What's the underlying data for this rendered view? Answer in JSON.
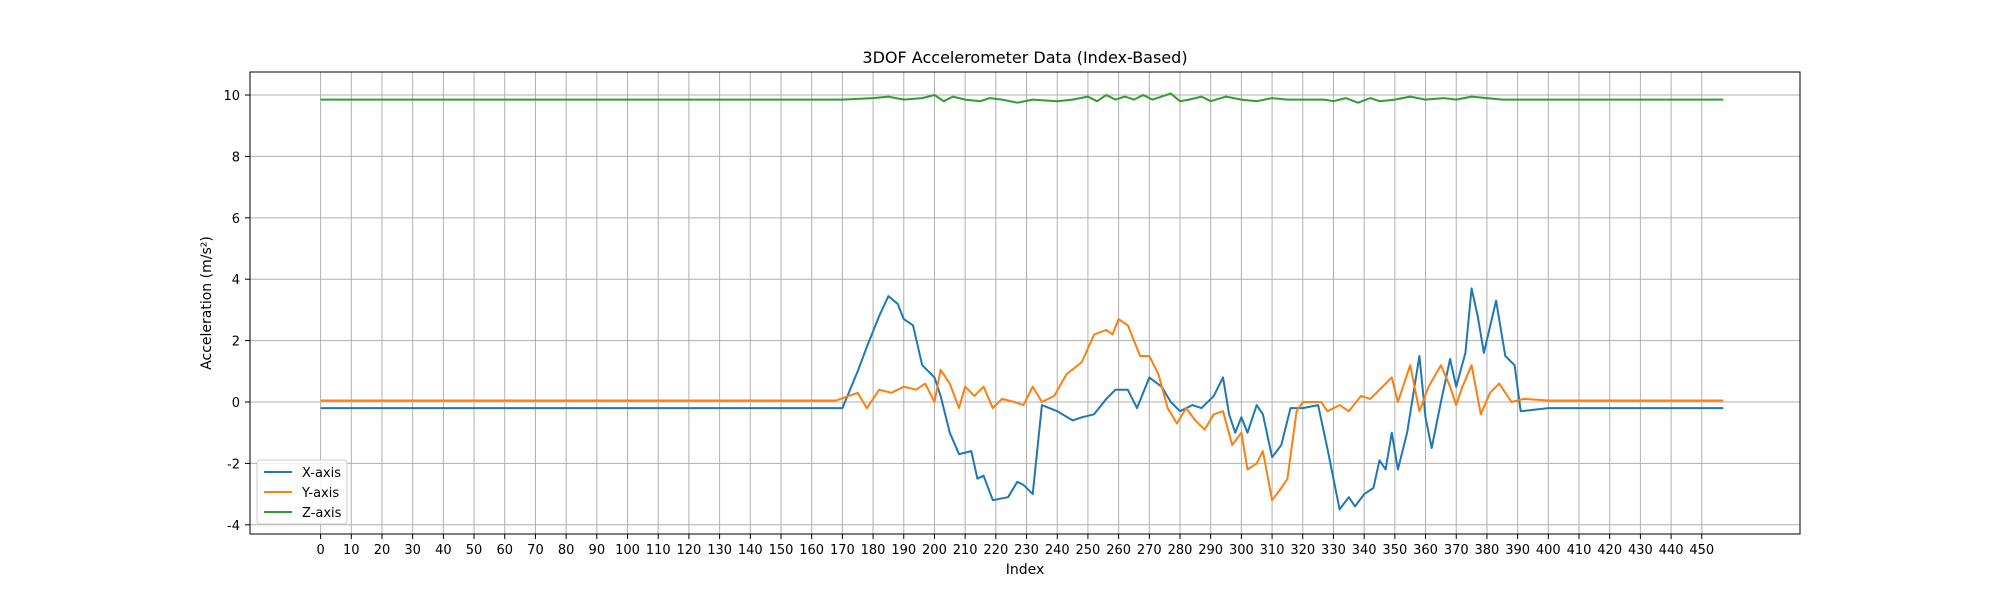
{
  "chart_data": {
    "type": "line",
    "title": "3DOF Accelerometer Data (Index-Based)",
    "xlabel": "Index",
    "ylabel": "Acceleration (m/s²)",
    "xlim": [
      -23,
      482
    ],
    "ylim": [
      -4.3,
      10.75
    ],
    "x_ticks": [
      0,
      10,
      20,
      30,
      40,
      50,
      60,
      70,
      80,
      90,
      100,
      110,
      120,
      130,
      140,
      150,
      160,
      170,
      180,
      190,
      200,
      210,
      220,
      230,
      240,
      250,
      260,
      270,
      280,
      290,
      300,
      310,
      320,
      330,
      340,
      350,
      360,
      370,
      380,
      390,
      400,
      410,
      420,
      430,
      440,
      450
    ],
    "y_ticks": [
      -4,
      -2,
      0,
      2,
      4,
      6,
      8,
      10
    ],
    "grid": true,
    "legend_position": "lower-left",
    "colors": {
      "x": "#1f77b4",
      "y": "#ff7f0e",
      "z": "#2ca02c"
    },
    "series": [
      {
        "name": "X-axis",
        "color": "#1f77b4",
        "points": [
          [
            0,
            -0.2
          ],
          [
            50,
            -0.2
          ],
          [
            100,
            -0.2
          ],
          [
            150,
            -0.2
          ],
          [
            170,
            -0.2
          ],
          [
            175,
            1.0
          ],
          [
            178,
            1.8
          ],
          [
            182,
            2.8
          ],
          [
            185,
            3.45
          ],
          [
            188,
            3.2
          ],
          [
            190,
            2.7
          ],
          [
            193,
            2.5
          ],
          [
            196,
            1.2
          ],
          [
            200,
            0.8
          ],
          [
            202,
            0.2
          ],
          [
            205,
            -1.0
          ],
          [
            208,
            -1.7
          ],
          [
            212,
            -1.6
          ],
          [
            214,
            -2.5
          ],
          [
            216,
            -2.4
          ],
          [
            219,
            -3.2
          ],
          [
            224,
            -3.1
          ],
          [
            227,
            -2.6
          ],
          [
            229,
            -2.7
          ],
          [
            232,
            -3.0
          ],
          [
            235,
            -0.1
          ],
          [
            240,
            -0.3
          ],
          [
            245,
            -0.6
          ],
          [
            248,
            -0.5
          ],
          [
            252,
            -0.4
          ],
          [
            256,
            0.1
          ],
          [
            259,
            0.4
          ],
          [
            263,
            0.4
          ],
          [
            266,
            -0.2
          ],
          [
            268,
            0.3
          ],
          [
            270,
            0.8
          ],
          [
            274,
            0.5
          ],
          [
            277,
            0.0
          ],
          [
            280,
            -0.3
          ],
          [
            284,
            -0.1
          ],
          [
            287,
            -0.2
          ],
          [
            291,
            0.2
          ],
          [
            294,
            0.8
          ],
          [
            296,
            -0.4
          ],
          [
            298,
            -1.0
          ],
          [
            300,
            -0.5
          ],
          [
            302,
            -1.0
          ],
          [
            305,
            -0.1
          ],
          [
            307,
            -0.4
          ],
          [
            310,
            -1.8
          ],
          [
            313,
            -1.4
          ],
          [
            316,
            -0.2
          ],
          [
            320,
            -0.2
          ],
          [
            325,
            -0.1
          ],
          [
            328,
            -1.5
          ],
          [
            332,
            -3.5
          ],
          [
            335,
            -3.1
          ],
          [
            337,
            -3.4
          ],
          [
            340,
            -3.0
          ],
          [
            343,
            -2.8
          ],
          [
            345,
            -1.9
          ],
          [
            347,
            -2.2
          ],
          [
            349,
            -1.0
          ],
          [
            351,
            -2.2
          ],
          [
            354,
            -1.0
          ],
          [
            358,
            1.5
          ],
          [
            360,
            -0.5
          ],
          [
            362,
            -1.5
          ],
          [
            365,
            0.0
          ],
          [
            368,
            1.4
          ],
          [
            370,
            0.5
          ],
          [
            373,
            1.6
          ],
          [
            375,
            3.7
          ],
          [
            377,
            2.8
          ],
          [
            379,
            1.6
          ],
          [
            383,
            3.3
          ],
          [
            386,
            1.5
          ],
          [
            389,
            1.2
          ],
          [
            391,
            -0.3
          ],
          [
            400,
            -0.2
          ],
          [
            450,
            -0.2
          ],
          [
            457,
            -0.2
          ]
        ]
      },
      {
        "name": "Y-axis",
        "color": "#ff7f0e",
        "points": [
          [
            0,
            0.05
          ],
          [
            50,
            0.05
          ],
          [
            100,
            0.05
          ],
          [
            150,
            0.05
          ],
          [
            168,
            0.05
          ],
          [
            172,
            0.2
          ],
          [
            175,
            0.3
          ],
          [
            178,
            -0.2
          ],
          [
            182,
            0.4
          ],
          [
            186,
            0.3
          ],
          [
            190,
            0.5
          ],
          [
            194,
            0.4
          ],
          [
            197,
            0.6
          ],
          [
            200,
            0.0
          ],
          [
            202,
            1.05
          ],
          [
            205,
            0.6
          ],
          [
            208,
            -0.2
          ],
          [
            210,
            0.5
          ],
          [
            213,
            0.2
          ],
          [
            216,
            0.5
          ],
          [
            219,
            -0.2
          ],
          [
            222,
            0.1
          ],
          [
            226,
            0.0
          ],
          [
            229,
            -0.1
          ],
          [
            232,
            0.5
          ],
          [
            235,
            0.0
          ],
          [
            239,
            0.2
          ],
          [
            243,
            0.9
          ],
          [
            248,
            1.3
          ],
          [
            252,
            2.2
          ],
          [
            256,
            2.35
          ],
          [
            258,
            2.2
          ],
          [
            260,
            2.7
          ],
          [
            263,
            2.5
          ],
          [
            267,
            1.5
          ],
          [
            270,
            1.5
          ],
          [
            273,
            0.9
          ],
          [
            276,
            -0.2
          ],
          [
            279,
            -0.7
          ],
          [
            282,
            -0.2
          ],
          [
            285,
            -0.6
          ],
          [
            288,
            -0.9
          ],
          [
            291,
            -0.4
          ],
          [
            294,
            -0.3
          ],
          [
            297,
            -1.4
          ],
          [
            300,
            -1.0
          ],
          [
            302,
            -2.2
          ],
          [
            305,
            -2.0
          ],
          [
            307,
            -1.6
          ],
          [
            310,
            -3.2
          ],
          [
            313,
            -2.8
          ],
          [
            315,
            -2.5
          ],
          [
            318,
            -0.3
          ],
          [
            320,
            0.0
          ],
          [
            326,
            0.0
          ],
          [
            328,
            -0.3
          ],
          [
            332,
            -0.1
          ],
          [
            335,
            -0.3
          ],
          [
            339,
            0.2
          ],
          [
            342,
            0.1
          ],
          [
            346,
            0.5
          ],
          [
            349,
            0.8
          ],
          [
            351,
            0.0
          ],
          [
            355,
            1.2
          ],
          [
            358,
            -0.3
          ],
          [
            361,
            0.5
          ],
          [
            365,
            1.2
          ],
          [
            368,
            0.5
          ],
          [
            370,
            -0.1
          ],
          [
            372,
            0.5
          ],
          [
            375,
            1.2
          ],
          [
            378,
            -0.4
          ],
          [
            381,
            0.3
          ],
          [
            384,
            0.6
          ],
          [
            388,
            0.0
          ],
          [
            392,
            0.1
          ],
          [
            400,
            0.05
          ],
          [
            450,
            0.05
          ],
          [
            457,
            0.05
          ]
        ]
      },
      {
        "name": "Z-axis",
        "color": "#2ca02c",
        "points": [
          [
            0,
            9.85
          ],
          [
            50,
            9.85
          ],
          [
            100,
            9.85
          ],
          [
            150,
            9.85
          ],
          [
            170,
            9.85
          ],
          [
            180,
            9.9
          ],
          [
            185,
            9.95
          ],
          [
            190,
            9.85
          ],
          [
            196,
            9.9
          ],
          [
            200,
            10.0
          ],
          [
            203,
            9.8
          ],
          [
            206,
            9.95
          ],
          [
            210,
            9.85
          ],
          [
            215,
            9.8
          ],
          [
            218,
            9.9
          ],
          [
            222,
            9.85
          ],
          [
            227,
            9.75
          ],
          [
            232,
            9.85
          ],
          [
            240,
            9.8
          ],
          [
            245,
            9.85
          ],
          [
            250,
            9.95
          ],
          [
            253,
            9.8
          ],
          [
            256,
            10.0
          ],
          [
            259,
            9.85
          ],
          [
            262,
            9.95
          ],
          [
            265,
            9.85
          ],
          [
            268,
            10.0
          ],
          [
            271,
            9.85
          ],
          [
            274,
            9.95
          ],
          [
            277,
            10.05
          ],
          [
            280,
            9.8
          ],
          [
            283,
            9.85
          ],
          [
            287,
            9.95
          ],
          [
            290,
            9.8
          ],
          [
            295,
            9.95
          ],
          [
            300,
            9.85
          ],
          [
            305,
            9.8
          ],
          [
            310,
            9.9
          ],
          [
            315,
            9.85
          ],
          [
            320,
            9.85
          ],
          [
            327,
            9.85
          ],
          [
            330,
            9.8
          ],
          [
            334,
            9.9
          ],
          [
            338,
            9.75
          ],
          [
            342,
            9.9
          ],
          [
            345,
            9.8
          ],
          [
            350,
            9.85
          ],
          [
            355,
            9.95
          ],
          [
            360,
            9.85
          ],
          [
            366,
            9.9
          ],
          [
            370,
            9.85
          ],
          [
            375,
            9.95
          ],
          [
            380,
            9.9
          ],
          [
            385,
            9.85
          ],
          [
            390,
            9.85
          ],
          [
            400,
            9.85
          ],
          [
            450,
            9.85
          ],
          [
            457,
            9.85
          ]
        ]
      }
    ]
  }
}
